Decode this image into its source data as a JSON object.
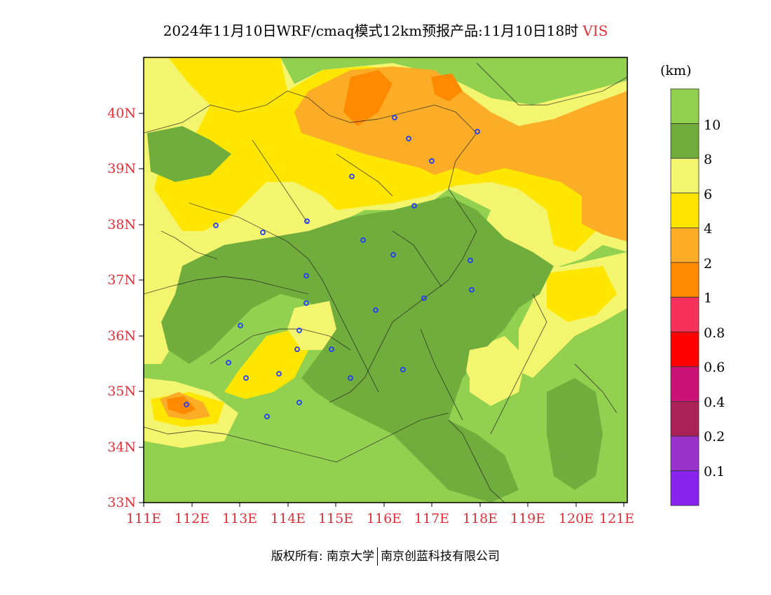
{
  "title": {
    "main": "2024年11月10日WRF/cmaq模式12km预报产品:11月10日18时",
    "variable": "VIS"
  },
  "map": {
    "lat_labels": [
      "40N",
      "39N",
      "38N",
      "37N",
      "36N",
      "35N",
      "34N",
      "33N"
    ],
    "lon_labels": [
      "111E",
      "112E",
      "113E",
      "114E",
      "115E",
      "116E",
      "117E",
      "118E",
      "119E",
      "120E",
      "121E"
    ],
    "colors": {
      "gt10": "#92d050",
      "v8_10": "#70ad3c",
      "v6_8": "#f3f56e",
      "v4_6": "#ffe600",
      "v2_4": "#fcad27",
      "v1_2": "#ff8a00",
      "city_marker": "#1f3cff",
      "axis_label": "#e0303a"
    }
  },
  "legend": {
    "unit": "(km)",
    "labels": [
      "10",
      "8",
      "6",
      "4",
      "2",
      "1",
      "0.8",
      "0.6",
      "0.4",
      "0.2",
      "0.1"
    ],
    "colors": [
      "#92d050",
      "#70ad3c",
      "#f3f56e",
      "#ffe600",
      "#fcad27",
      "#ff8a00",
      "#f7325a",
      "#ff0000",
      "#cc1177",
      "#aa2255",
      "#9933cc",
      "#8822ee"
    ]
  },
  "footer": {
    "owner": "版权所有: 南京大学",
    "company": "南京创蓝科技有限公司"
  }
}
